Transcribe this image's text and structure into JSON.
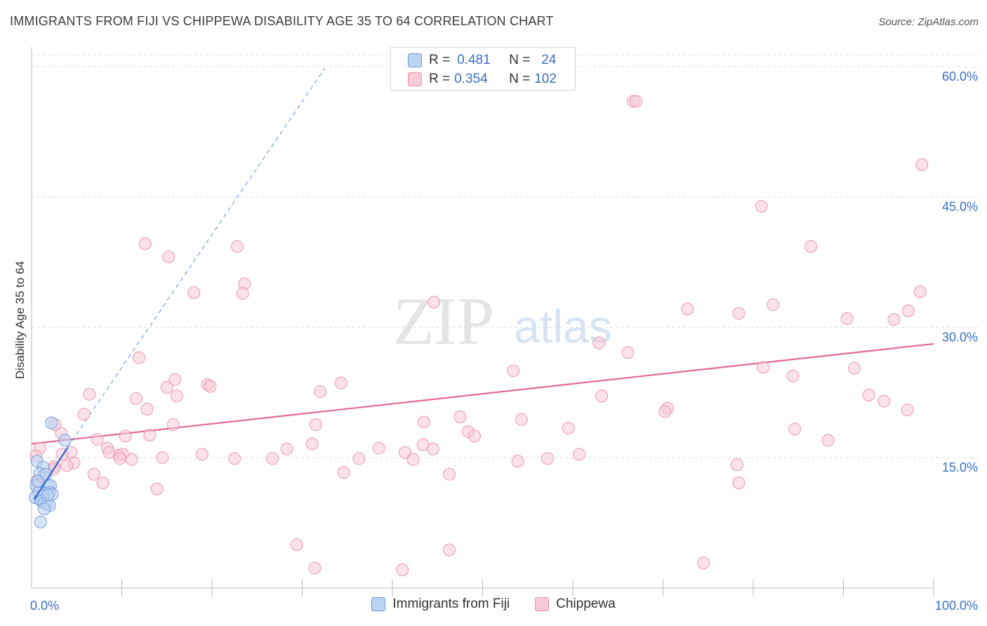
{
  "title": "IMMIGRANTS FROM FIJI VS CHIPPEWA DISABILITY AGE 35 TO 64 CORRELATION CHART",
  "source": "Source: ZipAtlas.com",
  "watermark": {
    "zip": "ZIP",
    "atlas": "atlas"
  },
  "stats_legend": [
    {
      "r_label": "R =",
      "r_value": "0.481",
      "n_label": "N =",
      "n_value": "24"
    },
    {
      "r_label": "R =",
      "r_value": "0.354",
      "n_label": "N =",
      "n_value": "102"
    }
  ],
  "bottom_legend": [
    "Immigrants from Fiji",
    "Chippewa"
  ],
  "chart_data": {
    "type": "scatter",
    "xlabel": "",
    "ylabel": "Disability Age 35 to 64",
    "xlim": [
      0,
      100
    ],
    "ylim": [
      0,
      62
    ],
    "x_tick_labels": [
      "0.0%",
      "100.0%"
    ],
    "y_ticks": [
      15,
      30,
      45,
      60
    ],
    "y_tick_labels": [
      "15.0%",
      "30.0%",
      "45.0%",
      "60.0%"
    ],
    "colors": {
      "fiji": "#6f9ad8",
      "fiji_fill": "#bcd4f3",
      "fiji_line": "#3a6fd4",
      "chippewa": "#e890a8",
      "chippewa_fill": "#f8c9d6",
      "chippewa_line": "#e0699a",
      "axis_label": "#3a6fc4"
    },
    "series": [
      {
        "name": "Immigrants from Fiji",
        "points": [
          [
            2.2,
            19
          ],
          [
            3.7,
            17
          ],
          [
            0.6,
            14.6
          ],
          [
            1.3,
            13.9
          ],
          [
            0.9,
            13.2
          ],
          [
            1.6,
            13.1
          ],
          [
            0.5,
            11.8
          ],
          [
            1.9,
            11.7
          ],
          [
            2.1,
            11.8
          ],
          [
            0.8,
            11
          ],
          [
            1.5,
            10.9
          ],
          [
            2,
            11
          ],
          [
            2.3,
            10.8
          ],
          [
            0.4,
            10.4
          ],
          [
            0.9,
            10.2
          ],
          [
            1.3,
            10.6
          ],
          [
            1.1,
            10
          ],
          [
            1.4,
            9.8
          ],
          [
            1.7,
            9.6
          ],
          [
            2.0,
            9.5
          ],
          [
            1.4,
            9.1
          ],
          [
            1.0,
            7.6
          ],
          [
            0.7,
            12.3
          ],
          [
            1.8,
            10.7
          ]
        ],
        "trend": {
          "x": [
            0.3,
            4.0
          ],
          "y": [
            10.2,
            16.2
          ]
        },
        "trend_extended": {
          "x": [
            4.0,
            32.5
          ],
          "y": [
            16.2,
            59.8
          ]
        }
      },
      {
        "name": "Chippewa",
        "points": [
          [
            66.7,
            56
          ],
          [
            67,
            56
          ],
          [
            98.7,
            48.7
          ],
          [
            80.9,
            43.9
          ],
          [
            12.6,
            39.6
          ],
          [
            15.2,
            38.1
          ],
          [
            22.8,
            39.3
          ],
          [
            86.4,
            39.3
          ],
          [
            23.6,
            35
          ],
          [
            18,
            34
          ],
          [
            23.4,
            33.9
          ],
          [
            82.2,
            32.6
          ],
          [
            72.7,
            32.1
          ],
          [
            78.4,
            31.6
          ],
          [
            90.4,
            31
          ],
          [
            95.6,
            30.9
          ],
          [
            97.2,
            31.9
          ],
          [
            98.5,
            34.1
          ],
          [
            44.6,
            32.9
          ],
          [
            62.9,
            28.2
          ],
          [
            66.1,
            27.1
          ],
          [
            11.9,
            26.5
          ],
          [
            53.4,
            25
          ],
          [
            81.1,
            25.4
          ],
          [
            91.2,
            25.3
          ],
          [
            84.4,
            24.4
          ],
          [
            15.9,
            24
          ],
          [
            19.5,
            23.4
          ],
          [
            19.8,
            23.2
          ],
          [
            15,
            23.1
          ],
          [
            32,
            22.6
          ],
          [
            34.3,
            23.6
          ],
          [
            6.4,
            22.3
          ],
          [
            11.6,
            21.8
          ],
          [
            16.1,
            22.1
          ],
          [
            63.2,
            22.1
          ],
          [
            92.8,
            22.2
          ],
          [
            94.5,
            21.5
          ],
          [
            12.8,
            20.6
          ],
          [
            70.5,
            20.7
          ],
          [
            70.2,
            20.3
          ],
          [
            97.1,
            20.5
          ],
          [
            5.8,
            20
          ],
          [
            47.5,
            19.7
          ],
          [
            43.5,
            19.1
          ],
          [
            54.3,
            19.4
          ],
          [
            31.5,
            18.8
          ],
          [
            15.7,
            18.8
          ],
          [
            2.6,
            18.8
          ],
          [
            59.5,
            18.4
          ],
          [
            84.6,
            18.3
          ],
          [
            48.4,
            18
          ],
          [
            3.3,
            17.8
          ],
          [
            4.4,
            15.6
          ],
          [
            13.1,
            17.6
          ],
          [
            10.4,
            17.5
          ],
          [
            7.3,
            17.1
          ],
          [
            49.1,
            17.5
          ],
          [
            88.3,
            17
          ],
          [
            43.4,
            16.5
          ],
          [
            28.3,
            16
          ],
          [
            0.9,
            16.1
          ],
          [
            8.4,
            16.1
          ],
          [
            31.1,
            16.6
          ],
          [
            38.5,
            16.1
          ],
          [
            41.4,
            15.6
          ],
          [
            44.5,
            16
          ],
          [
            9.7,
            15.3
          ],
          [
            8.6,
            15.6
          ],
          [
            10.1,
            15.4
          ],
          [
            9.8,
            14.9
          ],
          [
            3.4,
            15.4
          ],
          [
            11.1,
            14.8
          ],
          [
            14.5,
            15
          ],
          [
            18.9,
            15.4
          ],
          [
            22.5,
            14.9
          ],
          [
            26.7,
            14.9
          ],
          [
            36.3,
            14.9
          ],
          [
            42.3,
            14.8
          ],
          [
            53.9,
            14.6
          ],
          [
            57.2,
            14.9
          ],
          [
            60.7,
            15.4
          ],
          [
            0.5,
            15.2
          ],
          [
            4.7,
            14.4
          ],
          [
            2.5,
            14
          ],
          [
            3.9,
            14.1
          ],
          [
            78.2,
            14.2
          ],
          [
            34.6,
            13.3
          ],
          [
            2.5,
            13.7
          ],
          [
            46.3,
            13.1
          ],
          [
            6.9,
            13.1
          ],
          [
            1.3,
            12.9
          ],
          [
            7.9,
            12.1
          ],
          [
            78.4,
            12.1
          ],
          [
            0.6,
            12.3
          ],
          [
            13.9,
            11.4
          ],
          [
            29.4,
            5
          ],
          [
            46.3,
            4.4
          ],
          [
            74.5,
            2.9
          ],
          [
            31.4,
            2.3
          ],
          [
            41.1,
            2.1
          ],
          [
            0.8,
            11.7
          ]
        ],
        "trend": {
          "x": [
            0,
            100
          ],
          "y": [
            16.6,
            28.1
          ]
        }
      }
    ]
  }
}
